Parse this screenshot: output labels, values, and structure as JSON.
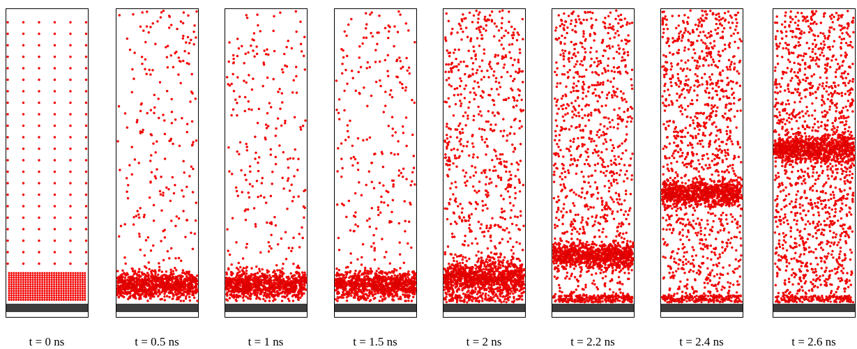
{
  "panels": [
    {
      "label": "t = 0 ns"
    },
    {
      "label": "t = 0.5 ns"
    },
    {
      "label": "t = 1 ns"
    },
    {
      "label": "t = 1.5 ns"
    },
    {
      "label": "t = 2 ns"
    },
    {
      "label": "t = 2.2 ns"
    },
    {
      "label": "t = 2.4 ns"
    },
    {
      "label": "t = 2.6 ns"
    }
  ]
}
